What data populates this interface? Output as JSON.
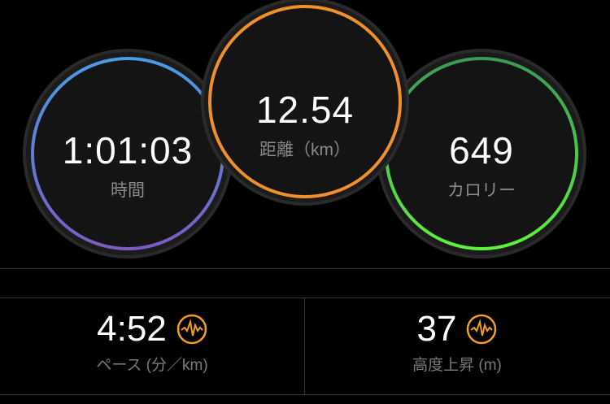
{
  "circles": [
    {
      "value": "1:01:03",
      "label": "時間",
      "colors": [
        "#4a90e2",
        "#7a5fc0"
      ]
    },
    {
      "value": "12.54",
      "label": "距離（km）",
      "colors": [
        "#f0902a",
        "#f0902a"
      ]
    },
    {
      "value": "649",
      "label": "カロリー",
      "colors": [
        "#3fa85a",
        "#5cf03a"
      ]
    }
  ],
  "stats": [
    {
      "value": "4:52",
      "label": "ペース (分／km)",
      "icon": "activity-chart-icon"
    },
    {
      "value": "37",
      "label": "高度上昇 (m)",
      "icon": "activity-chart-icon"
    }
  ],
  "accent": "#f0a020"
}
